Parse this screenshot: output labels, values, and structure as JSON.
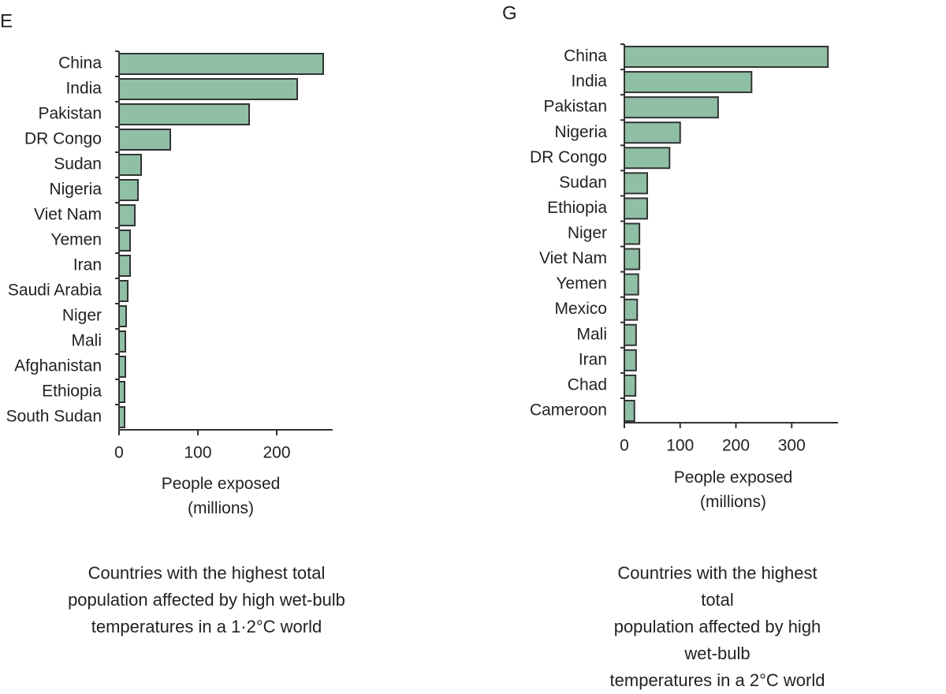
{
  "chart_data": [
    {
      "type": "barh",
      "panel": "E",
      "xlabel": "People exposed\n(millions)",
      "caption": "Countries with the highest total\npopulation affected by high wet-bulb\ntemperatures in a 1·2°C world",
      "categories": [
        "China",
        "India",
        "Pakistan",
        "DR Congo",
        "Sudan",
        "Nigeria",
        "Viet Nam",
        "Yemen",
        "Iran",
        "Saudi Arabia",
        "Niger",
        "Mali",
        "Afghanistan",
        "Ethiopia",
        "South Sudan"
      ],
      "values": [
        259,
        226,
        165,
        65,
        28,
        24,
        20,
        14,
        14,
        11,
        9,
        8,
        8,
        7,
        7
      ],
      "color": "#8fbfa5",
      "xlim": [
        0,
        271
      ],
      "xticks": [
        0,
        100,
        200
      ]
    },
    {
      "type": "barh",
      "panel": "G",
      "xlabel": "People exposed\n(millions)",
      "caption": "Countries with the highest total\npopulation affected by high wet-bulb\ntemperatures in a 2°C world",
      "categories": [
        "China",
        "India",
        "Pakistan",
        "Nigeria",
        "DR Congo",
        "Sudan",
        "Ethiopia",
        "Niger",
        "Viet Nam",
        "Yemen",
        "Mexico",
        "Mali",
        "Iran",
        "Chad",
        "Cameroon"
      ],
      "values": [
        365,
        228,
        168,
        100,
        81,
        41,
        41,
        27,
        27,
        25,
        23,
        21,
        21,
        20,
        18
      ],
      "color": "#8fbfa5",
      "xlim": [
        0,
        383
      ],
      "xticks": [
        0,
        100,
        200,
        300
      ]
    }
  ]
}
